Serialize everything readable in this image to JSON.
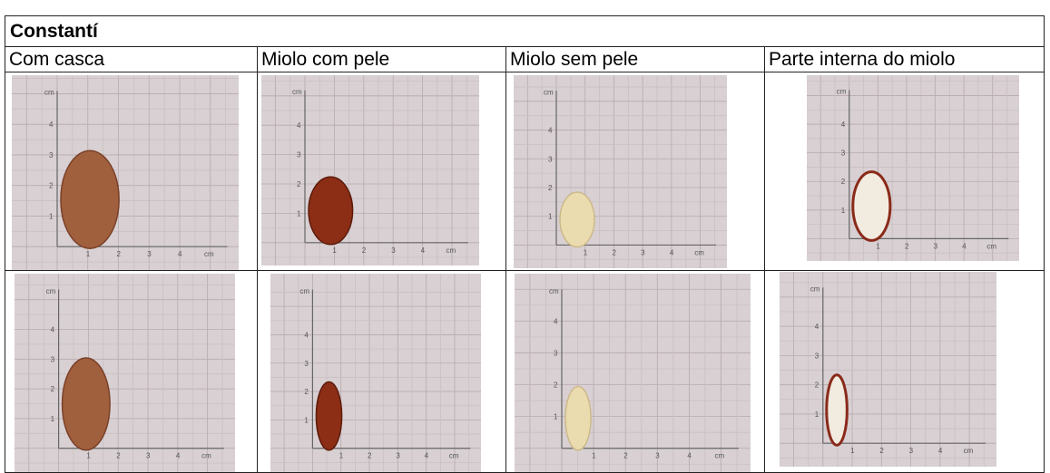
{
  "header": {
    "title": "Constantí"
  },
  "table": {
    "columns": [
      "Com casca",
      "Miolo com pele",
      "Miolo sem pele",
      "Parte interna do miolo"
    ]
  },
  "photo_scale": {
    "unit": "cm",
    "ticks": [
      "1",
      "2",
      "3",
      "4"
    ]
  }
}
